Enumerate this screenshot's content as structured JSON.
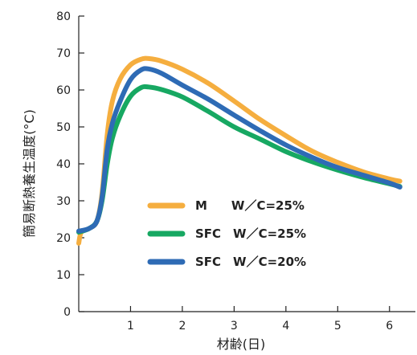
{
  "chart_data": {
    "type": "line",
    "title": "",
    "xlabel": "材齢(日)",
    "ylabel": "簡易断熱養生温度(°C)",
    "xlim": [
      0,
      6.5
    ],
    "ylim": [
      0,
      80
    ],
    "xticks": [
      1,
      2,
      3,
      4,
      5,
      6
    ],
    "yticks": [
      0,
      10,
      20,
      30,
      40,
      50,
      60,
      70,
      80
    ],
    "grid": false,
    "legend": "center",
    "series": [
      {
        "name": "M　　W／C=25%",
        "color": "#F5AE3F",
        "points": [
          [
            0,
            18.5
          ],
          [
            0.05,
            21.5
          ],
          [
            0.2,
            22.5
          ],
          [
            0.35,
            24.5
          ],
          [
            0.45,
            32
          ],
          [
            0.55,
            48
          ],
          [
            0.65,
            57
          ],
          [
            0.8,
            63
          ],
          [
            1.0,
            66.8
          ],
          [
            1.2,
            68.3
          ],
          [
            1.35,
            68.5
          ],
          [
            1.6,
            67.8
          ],
          [
            2.0,
            65.6
          ],
          [
            2.5,
            61.8
          ],
          [
            3.0,
            57.0
          ],
          [
            3.5,
            52.0
          ],
          [
            4.0,
            47.6
          ],
          [
            4.5,
            43.5
          ],
          [
            5.0,
            40.4
          ],
          [
            5.5,
            37.8
          ],
          [
            6.0,
            35.9
          ],
          [
            6.2,
            35.3
          ]
        ]
      },
      {
        "name": "SFC　W／C=25%",
        "color": "#17A862",
        "points": [
          [
            0,
            21.5
          ],
          [
            0.2,
            22.5
          ],
          [
            0.35,
            24.5
          ],
          [
            0.45,
            30
          ],
          [
            0.55,
            40
          ],
          [
            0.65,
            47
          ],
          [
            0.8,
            53
          ],
          [
            1.0,
            58.3
          ],
          [
            1.2,
            60.6
          ],
          [
            1.35,
            60.8
          ],
          [
            1.6,
            60.1
          ],
          [
            2.0,
            58.1
          ],
          [
            2.5,
            54.2
          ],
          [
            3.0,
            50.0
          ],
          [
            3.5,
            46.7
          ],
          [
            4.0,
            43.3
          ],
          [
            4.5,
            40.6
          ],
          [
            5.0,
            38.3
          ],
          [
            5.5,
            36.3
          ],
          [
            6.0,
            34.6
          ],
          [
            6.2,
            33.9
          ]
        ]
      },
      {
        "name": "SFC　W／C=20%",
        "color": "#2E6BB5",
        "points": [
          [
            0,
            21.8
          ],
          [
            0.2,
            22.5
          ],
          [
            0.35,
            24.5
          ],
          [
            0.45,
            31
          ],
          [
            0.55,
            44
          ],
          [
            0.65,
            51
          ],
          [
            0.8,
            57
          ],
          [
            1.0,
            62.8
          ],
          [
            1.2,
            65.4
          ],
          [
            1.35,
            65.7
          ],
          [
            1.6,
            64.5
          ],
          [
            2.0,
            61.3
          ],
          [
            2.5,
            57.5
          ],
          [
            3.0,
            53.2
          ],
          [
            3.5,
            49.0
          ],
          [
            4.0,
            45.1
          ],
          [
            4.5,
            41.8
          ],
          [
            5.0,
            39.0
          ],
          [
            5.5,
            36.9
          ],
          [
            6.0,
            34.8
          ],
          [
            6.2,
            33.7
          ]
        ]
      }
    ]
  }
}
